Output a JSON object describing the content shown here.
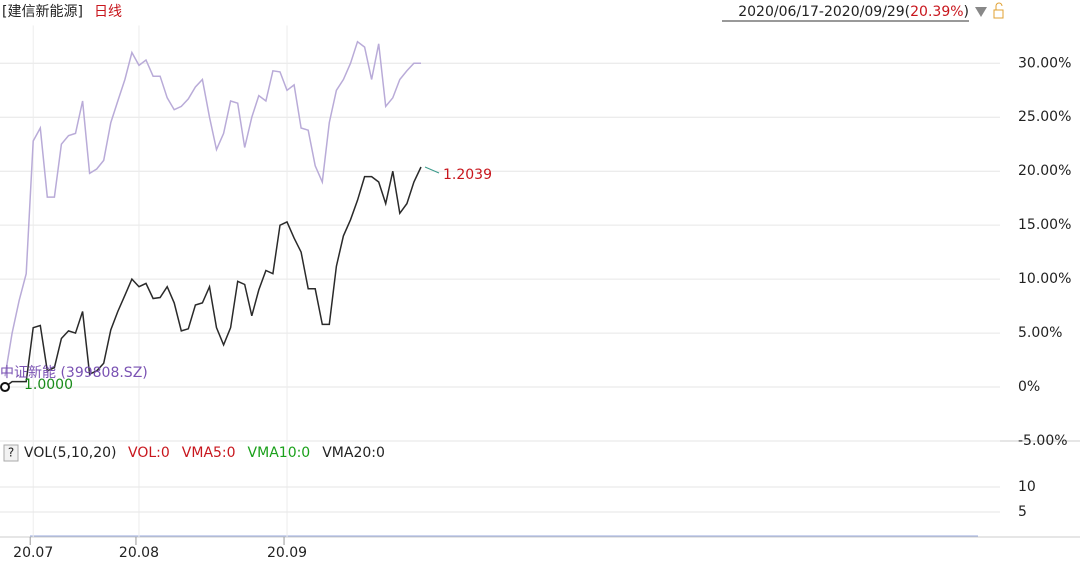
{
  "chart_data": [
    {
      "type": "line",
      "title": "[建信新能源]",
      "period": "日线",
      "date_range": "2020/06/17-2020/09/29",
      "paren_open": "(",
      "change": "20.39%",
      "paren_close": ")",
      "categories": [
        null,
        null,
        null,
        null,
        "20.07",
        null,
        null,
        null,
        null,
        null,
        null,
        null,
        null,
        null,
        null,
        null,
        null,
        null,
        null,
        "20.08",
        null,
        null,
        null,
        null,
        null,
        null,
        null,
        null,
        null,
        null,
        null,
        null,
        null,
        null,
        null,
        null,
        null,
        null,
        null,
        null,
        "20.09",
        null,
        null,
        null,
        null,
        null,
        null,
        null,
        null,
        null,
        null,
        null,
        null,
        null,
        null,
        null,
        null,
        null,
        null,
        null
      ],
      "series": [
        {
          "color": "#2a2a2a",
          "values": [
            0,
            0.5,
            0.5,
            0.5,
            5.5,
            5.7,
            1.5,
            1.8,
            4.5,
            5.2,
            5.0,
            7.0,
            1.2,
            1.5,
            2.2,
            5.3,
            7.0,
            8.5,
            10.0,
            9.3,
            9.6,
            8.2,
            8.3,
            9.3,
            7.8,
            5.2,
            5.4,
            7.6,
            7.8,
            9.3,
            5.5,
            3.9,
            5.5,
            9.8,
            9.5,
            6.6,
            9.0,
            10.8,
            10.5,
            15.0,
            15.3,
            13.8,
            12.5,
            9.1,
            9.1,
            5.8,
            5.8,
            11.2,
            14.0,
            15.5,
            17.3,
            19.5,
            19.5,
            19.0,
            17.0,
            20.0,
            16.1,
            17.0,
            19.0,
            20.39
          ]
        },
        {
          "name": "中证新能 (399808.SZ)",
          "color": "#b9abd8",
          "values": [
            1.0,
            5.0,
            8.0,
            10.5,
            22.8,
            24.0,
            17.6,
            17.6,
            22.5,
            23.3,
            23.5,
            26.5,
            19.8,
            20.2,
            21.0,
            24.5,
            26.5,
            28.5,
            31.0,
            29.8,
            30.3,
            28.8,
            28.8,
            26.8,
            25.7,
            26.0,
            26.7,
            27.8,
            28.5,
            25.0,
            22.0,
            23.5,
            26.5,
            26.3,
            22.2,
            25.0,
            27.0,
            26.5,
            29.3,
            29.2,
            27.5,
            28.0,
            24.0,
            23.8,
            20.5,
            19.0,
            24.5,
            27.5,
            28.5,
            30.0,
            32.0,
            31.5,
            28.5,
            31.8,
            26.0,
            26.8,
            28.5,
            29.3,
            30.0,
            30.0
          ]
        }
      ],
      "annotations": [
        {
          "text": "1.0000",
          "color": "#1a8c1a"
        },
        {
          "text": "1.2039",
          "color": "#c8161d"
        }
      ],
      "ylim": [
        -5,
        33.5
      ],
      "yticks": [
        {
          "value": -5,
          "label": "-5.00%"
        },
        {
          "value": 0,
          "label": "0%"
        },
        {
          "value": 5,
          "label": "5.00%"
        },
        {
          "value": 10,
          "label": "10.00%"
        },
        {
          "value": 15,
          "label": "15.00%"
        },
        {
          "value": 20,
          "label": "20.00%"
        },
        {
          "value": 25,
          "label": "25.00%"
        },
        {
          "value": 30,
          "label": "30.00%"
        }
      ],
      "grid": true
    },
    {
      "type": "volume",
      "help": "?",
      "indicator": "VOL(5,10,20)",
      "readouts": [
        {
          "text": "VOL:0",
          "color": "#c8161d"
        },
        {
          "text": "VMA5:0",
          "color": "#c8161d"
        },
        {
          "text": "VMA10:0",
          "color": "#1aa01a"
        },
        {
          "text": "VMA20:0",
          "color": "#222222"
        }
      ],
      "ylim": [
        0,
        18.2
      ],
      "yticks": [
        5,
        10
      ]
    }
  ]
}
